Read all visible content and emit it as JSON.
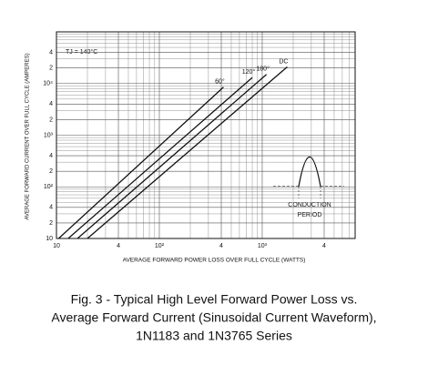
{
  "chart_data": {
    "type": "line",
    "title": [
      "Fig. 3 - Typical High Level Forward Power Loss vs.",
      "Average Forward Current (Sinusoidal Current Waveform),",
      "1N1183 and 1N3765 Series"
    ],
    "xlabel": "AVERAGE FORWARD POWER LOSS OVER FULL CYCLE (WATTS)",
    "ylabel": "AVERAGE FORWARD CURRENT OVER FULL CYCLE (AMPERES)",
    "annotations": [
      "TJ = 140°C",
      "CONDUCTION",
      "PERIOD"
    ],
    "log_x": true,
    "log_y": true,
    "grid": true,
    "xlim": [
      10,
      8000
    ],
    "ylim": [
      10,
      100000
    ],
    "xticks": [
      10,
      {
        "value": 40,
        "label": "4"
      },
      {
        "value": 100,
        "label": "10²"
      },
      {
        "value": 400,
        "label": "4"
      },
      {
        "value": 1000,
        "label": "10³"
      },
      {
        "value": 4000,
        "label": "4"
      }
    ],
    "yticks": [
      10,
      {
        "value": 20,
        "label": "2"
      },
      {
        "value": 40,
        "label": "4"
      },
      {
        "value": 100,
        "label": "10²"
      },
      {
        "value": 200,
        "label": "2"
      },
      {
        "value": 400,
        "label": "4"
      },
      {
        "value": 1000,
        "label": "10³"
      },
      {
        "value": 2000,
        "label": "2"
      },
      {
        "value": 4000,
        "label": "4"
      },
      {
        "value": 10000,
        "label": "10⁴"
      },
      {
        "value": 20000,
        "label": "2"
      },
      {
        "value": 40000,
        "label": "4"
      }
    ],
    "xminor": [
      20,
      30,
      50,
      60,
      70,
      80,
      90,
      200,
      300,
      500,
      600,
      700,
      800,
      900,
      2000,
      3000,
      5000,
      6000,
      7000
    ],
    "yminor": [
      30,
      50,
      60,
      70,
      80,
      90,
      300,
      500,
      600,
      700,
      800,
      900,
      3000,
      5000,
      6000,
      7000,
      8000,
      9000,
      30000,
      50000,
      60000,
      70000,
      80000,
      90000,
      100000
    ],
    "series": [
      {
        "name": "60°",
        "color": "#111111",
        "x": [
          10.5,
          420
        ],
        "values": [
          10,
          8500
        ]
      },
      {
        "name": "120°",
        "color": "#111111",
        "x": [
          13,
          800
        ],
        "values": [
          10,
          13000
        ]
      },
      {
        "name": "180°",
        "color": "#111111",
        "x": [
          16,
          1100
        ],
        "values": [
          10,
          15000
        ]
      },
      {
        "name": "DC",
        "color": "#111111",
        "x": [
          20,
          1750
        ],
        "values": [
          10,
          21000
        ]
      }
    ]
  }
}
